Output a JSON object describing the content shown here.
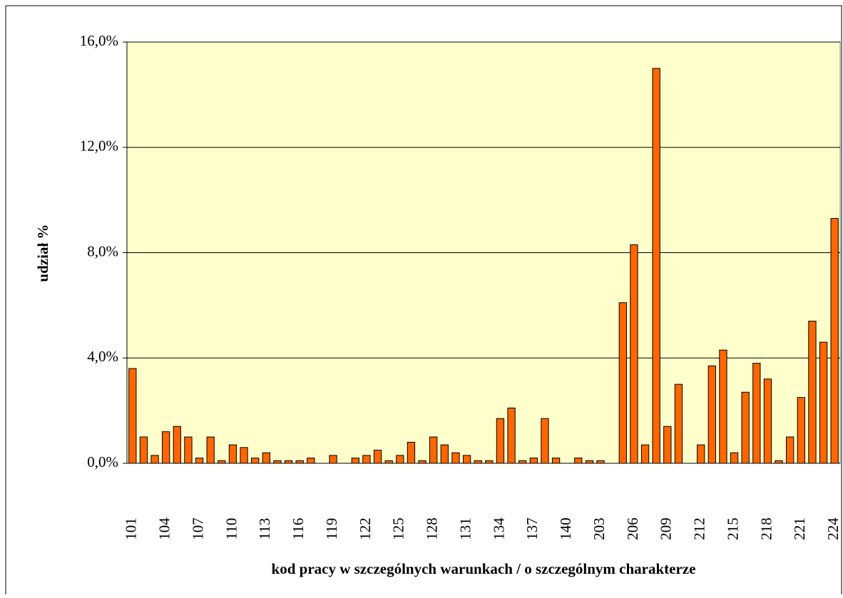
{
  "chart_data": {
    "type": "bar",
    "y_label": "udział %",
    "x_label": "kod pracy w szczególnych warunkach / o szczególnym charakterze",
    "categories": [
      "101",
      null,
      null,
      "104",
      null,
      null,
      "107",
      null,
      null,
      "110",
      null,
      null,
      "113",
      null,
      null,
      "116",
      null,
      null,
      "119",
      null,
      null,
      "122",
      null,
      null,
      "125",
      null,
      null,
      "128",
      null,
      null,
      "131",
      null,
      null,
      "134",
      null,
      null,
      "137",
      null,
      null,
      "140",
      null,
      null,
      "203",
      null,
      null,
      "206",
      null,
      null,
      "209",
      null,
      null,
      "212",
      null,
      null,
      "215",
      null,
      null,
      "218",
      null,
      null,
      "221",
      null,
      null,
      "224"
    ],
    "values": [
      3.6,
      1.0,
      0.3,
      1.2,
      1.4,
      1.0,
      0.2,
      1.0,
      0.1,
      0.7,
      0.6,
      0.2,
      0.4,
      0.1,
      0.1,
      0.1,
      0.2,
      0,
      0.3,
      0,
      0.2,
      0.3,
      0.5,
      0.1,
      0.3,
      0.8,
      0.1,
      1.0,
      0.7,
      0.4,
      0.3,
      0.1,
      0.1,
      1.7,
      2.1,
      0.1,
      0.2,
      1.7,
      0.2,
      0,
      0.2,
      0.1,
      0.1,
      0,
      6.1,
      8.3,
      0.7,
      15.0,
      1.4,
      3.0,
      0,
      0.7,
      3.7,
      4.3,
      0.4,
      2.7,
      3.8,
      3.2,
      0.1,
      1.0,
      2.5,
      5.4,
      4.6,
      9.3
    ],
    "color": "#ff6600",
    "ylim": [
      0,
      16
    ],
    "yticks": [
      {
        "value": 0,
        "label": "0,0%"
      },
      {
        "value": 4,
        "label": "4,0%"
      },
      {
        "value": 8,
        "label": "8,0%"
      },
      {
        "value": 12,
        "label": "12,0%"
      },
      {
        "value": 16,
        "label": "16,0%"
      }
    ],
    "grid": true
  }
}
